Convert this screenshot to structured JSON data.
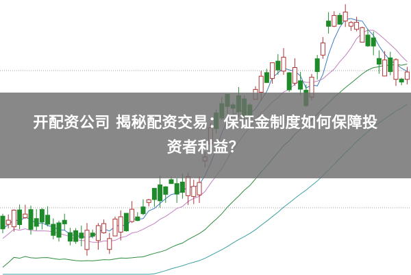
{
  "article": {
    "title_line1": "开配资公司 揭秘配资交易：保证金制度如何保障投",
    "title_line2": "资者利益？"
  },
  "colors": {
    "up_candle": "#b03030",
    "down_candle": "#1f8a2a",
    "ma_pink": "#c080c0",
    "ma_blue": "#3a7bbf",
    "ma_green": "#2e8b3e",
    "ma_teal": "#3aa0a0",
    "banner": "#6e6e6e"
  },
  "image_description_free": true
}
